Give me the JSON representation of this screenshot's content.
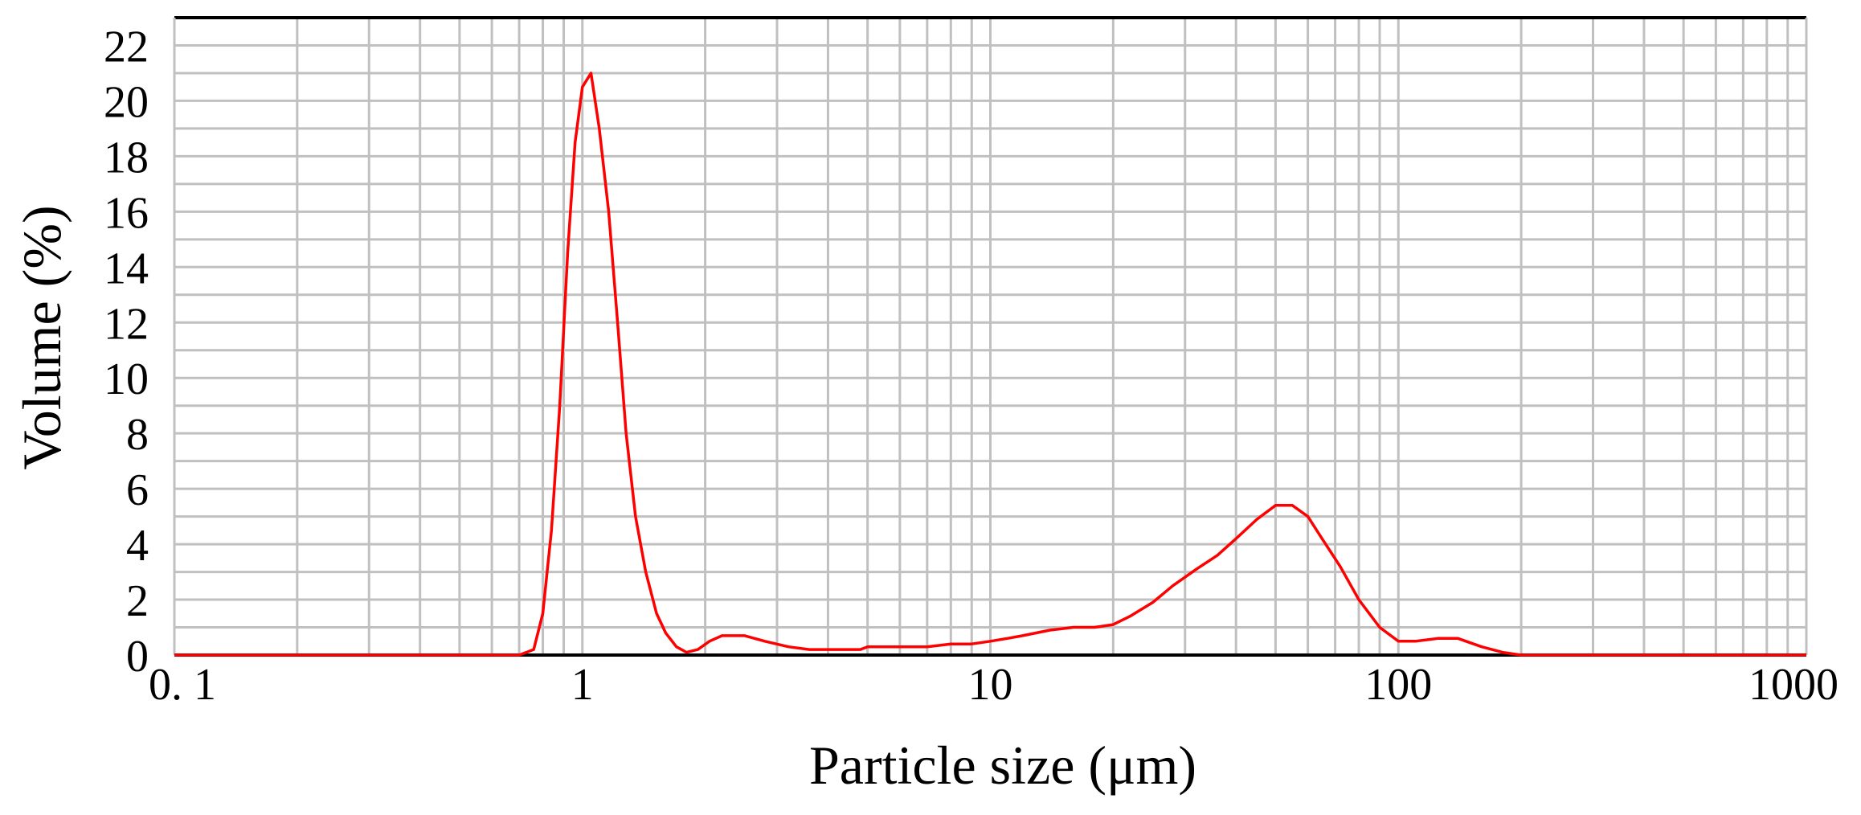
{
  "chart_data": {
    "type": "line",
    "title": "",
    "xlabel": "Particle size (μm)",
    "ylabel": "Volume (%)",
    "x_scale": "log",
    "xlim": [
      0.1,
      1000
    ],
    "ylim": [
      0,
      23
    ],
    "grid": true,
    "x_tick_labels": [
      "0. 1",
      "1",
      "10",
      "100",
      "1000"
    ],
    "x_tick_values": [
      0.1,
      1,
      10,
      100,
      1000
    ],
    "y_tick_values": [
      0,
      2,
      4,
      6,
      8,
      10,
      12,
      14,
      16,
      18,
      20,
      22
    ],
    "y_tick_labels": [
      "0",
      "2",
      "4",
      "6",
      "8",
      "10",
      "12",
      "14",
      "16",
      "18",
      "20",
      "22"
    ],
    "colors": {
      "line": "#ff0000",
      "grid": "#c0c0c0",
      "axes": "#000000"
    },
    "series": [
      {
        "x": [
          0.1,
          0.5,
          0.7,
          0.76,
          0.8,
          0.84,
          0.88,
          0.92,
          0.96,
          1.0,
          1.05,
          1.1,
          1.16,
          1.22,
          1.28,
          1.35,
          1.43,
          1.52,
          1.6,
          1.7,
          1.8,
          1.92,
          2.05,
          2.2,
          2.5,
          2.8,
          3.2,
          3.6,
          4.2,
          4.8,
          5.0,
          6.0,
          7.0,
          8.0,
          9.0,
          10.0,
          11.0,
          12.0,
          14.0,
          16.0,
          18.0,
          20.0,
          22.0,
          25.0,
          28.0,
          32.0,
          36.0,
          40.0,
          45.0,
          50.0,
          55.0,
          60.0,
          65.0,
          72.0,
          80.0,
          90.0,
          100.0,
          110.0,
          125.0,
          140.0,
          160.0,
          180.0,
          200.0,
          1000.0
        ],
        "y": [
          0,
          0,
          0,
          0.2,
          1.5,
          4.5,
          9.0,
          14.5,
          18.5,
          20.5,
          21.0,
          19.0,
          16.0,
          12.0,
          8.0,
          5.0,
          3.0,
          1.5,
          0.8,
          0.3,
          0.1,
          0.2,
          0.5,
          0.7,
          0.7,
          0.5,
          0.3,
          0.2,
          0.2,
          0.2,
          0.3,
          0.3,
          0.3,
          0.4,
          0.4,
          0.5,
          0.6,
          0.7,
          0.9,
          1.0,
          1.0,
          1.1,
          1.4,
          1.9,
          2.5,
          3.1,
          3.6,
          4.2,
          4.9,
          5.4,
          5.4,
          5.0,
          4.2,
          3.2,
          2.0,
          1.0,
          0.5,
          0.5,
          0.6,
          0.6,
          0.3,
          0.1,
          0,
          0
        ]
      }
    ]
  }
}
